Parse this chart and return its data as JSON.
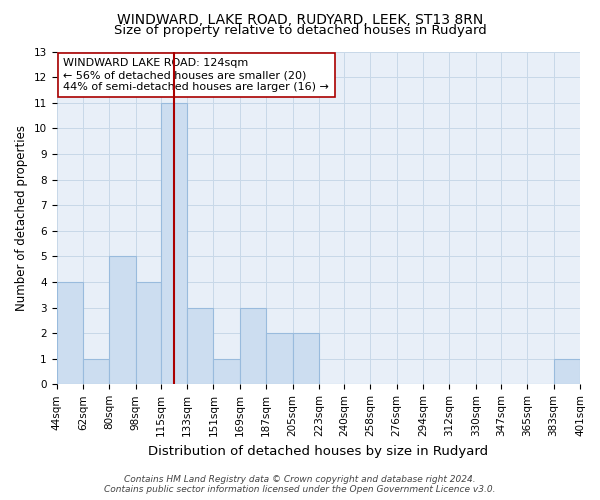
{
  "title": "WINDWARD, LAKE ROAD, RUDYARD, LEEK, ST13 8RN",
  "subtitle": "Size of property relative to detached houses in Rudyard",
  "xlabel": "Distribution of detached houses by size in Rudyard",
  "ylabel": "Number of detached properties",
  "bin_edges": [
    44,
    62,
    80,
    98,
    115,
    133,
    151,
    169,
    187,
    205,
    223,
    240,
    258,
    276,
    294,
    312,
    330,
    347,
    365,
    383,
    401
  ],
  "bar_heights": [
    4,
    1,
    5,
    4,
    11,
    3,
    1,
    3,
    2,
    2,
    0,
    0,
    0,
    0,
    0,
    0,
    0,
    0,
    0,
    1
  ],
  "bar_color": "#ccddf0",
  "bar_edgecolor": "#99bbdd",
  "vline_x": 124,
  "vline_color": "#aa0000",
  "ylim": [
    0,
    13
  ],
  "yticks": [
    0,
    1,
    2,
    3,
    4,
    5,
    6,
    7,
    8,
    9,
    10,
    11,
    12,
    13
  ],
  "xtick_labels": [
    "44sqm",
    "62sqm",
    "80sqm",
    "98sqm",
    "115sqm",
    "133sqm",
    "151sqm",
    "169sqm",
    "187sqm",
    "205sqm",
    "223sqm",
    "240sqm",
    "258sqm",
    "276sqm",
    "294sqm",
    "312sqm",
    "330sqm",
    "347sqm",
    "365sqm",
    "383sqm",
    "401sqm"
  ],
  "annotation_box_text": "WINDWARD LAKE ROAD: 124sqm\n← 56% of detached houses are smaller (20)\n44% of semi-detached houses are larger (16) →",
  "annotation_box_color": "#ffffff",
  "annotation_box_edgecolor": "#aa0000",
  "grid_color": "#c8d8e8",
  "background_color": "#e8eff8",
  "footer_line1": "Contains HM Land Registry data © Crown copyright and database right 2024.",
  "footer_line2": "Contains public sector information licensed under the Open Government Licence v3.0.",
  "title_fontsize": 10,
  "subtitle_fontsize": 9.5,
  "xlabel_fontsize": 9.5,
  "ylabel_fontsize": 8.5,
  "tick_fontsize": 7.5,
  "annotation_fontsize": 8,
  "footer_fontsize": 6.5
}
